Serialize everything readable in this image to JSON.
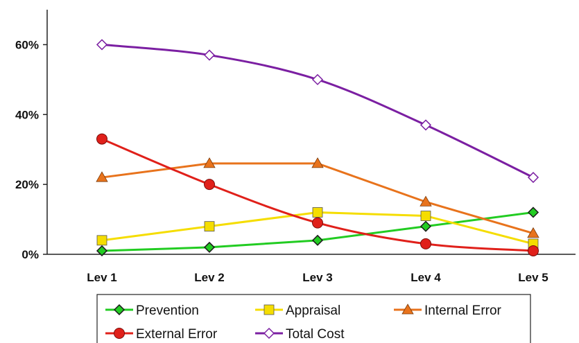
{
  "chart_data": {
    "type": "line",
    "title": "",
    "xlabel": "",
    "ylabel": "",
    "categories": [
      "Lev 1",
      "Lev 2",
      "Lev 3",
      "Lev 4",
      "Lev 5"
    ],
    "y_ticks": [
      "0%",
      "20%",
      "40%",
      "60%"
    ],
    "ylim": [
      0,
      70
    ],
    "grid": false,
    "legend_position": "bottom",
    "series": [
      {
        "name": "Prevention",
        "values": [
          1,
          2,
          4,
          8,
          12
        ],
        "color": "#22cc22",
        "marker": "diamond",
        "smooth": false
      },
      {
        "name": "Appraisal",
        "values": [
          4,
          8,
          12,
          11,
          3
        ],
        "color": "#f5dd00",
        "marker": "square",
        "smooth": false
      },
      {
        "name": "Internal Error",
        "values": [
          22,
          26,
          26,
          15,
          6
        ],
        "color": "#e8731c",
        "marker": "triangle",
        "smooth": false
      },
      {
        "name": "External Error",
        "values": [
          33,
          20,
          9,
          3,
          1
        ],
        "color": "#e0201a",
        "marker": "circle",
        "smooth": true
      },
      {
        "name": "Total Cost",
        "values": [
          60,
          57,
          50,
          37,
          22
        ],
        "color": "#7b1fa2",
        "marker": "open-diamond",
        "smooth": true
      }
    ]
  }
}
